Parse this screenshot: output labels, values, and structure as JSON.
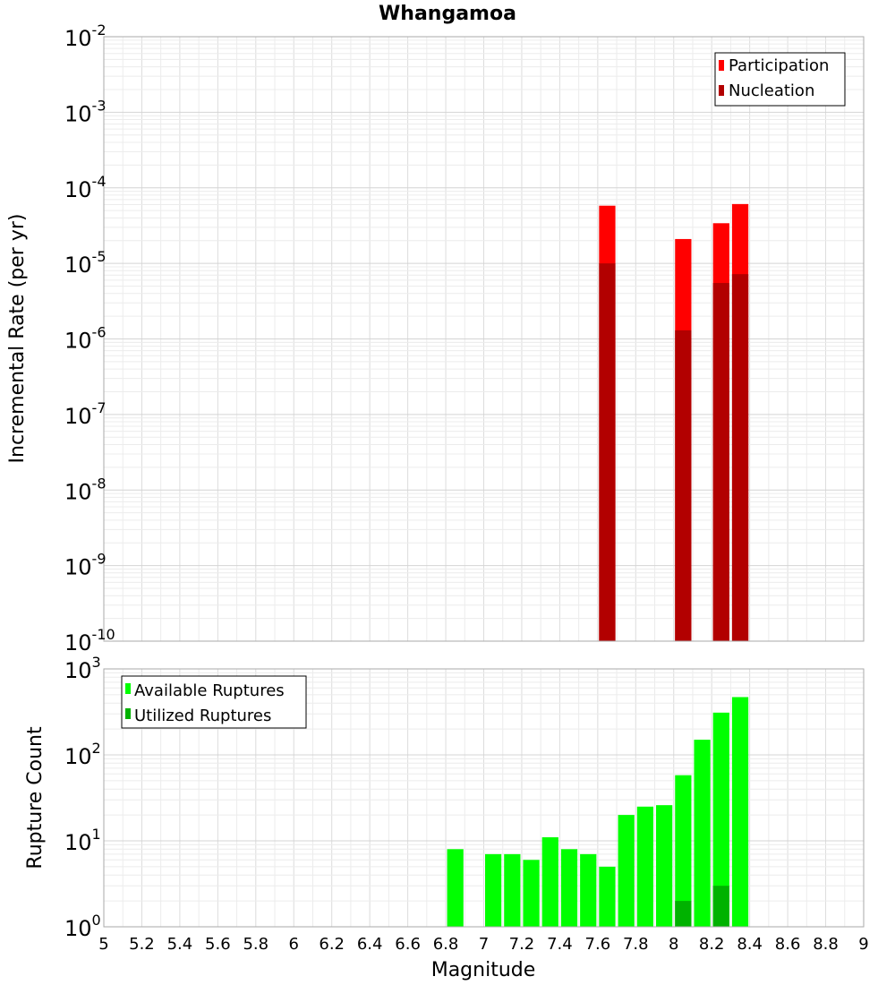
{
  "chart_data": [
    {
      "type": "bar",
      "title": "Whangamoa",
      "ylabel": "Incremental Rate (per yr)",
      "xlabel": "",
      "yscale": "log",
      "ylim_exp": [
        -10,
        -2
      ],
      "xlim": [
        5,
        9
      ],
      "bar_width": 0.1,
      "grid": true,
      "legend_position": "top-right",
      "series": [
        {
          "name": "Participation",
          "color": "#ff0000",
          "x": [
            7.65,
            8.05,
            8.25,
            8.35
          ],
          "values": [
            5.8e-05,
            2.1e-05,
            3.4e-05,
            6.1e-05
          ]
        },
        {
          "name": "Nucleation",
          "color": "#b20000",
          "x": [
            7.65,
            8.05,
            8.25,
            8.35
          ],
          "values": [
            1e-05,
            1.3e-06,
            5.5e-06,
            7.2e-06
          ]
        }
      ]
    },
    {
      "type": "bar",
      "title": "",
      "ylabel": "Rupture Count",
      "xlabel": "Magnitude",
      "yscale": "log",
      "ylim_exp": [
        0,
        3
      ],
      "xlim": [
        5,
        9
      ],
      "bar_width": 0.1,
      "grid": true,
      "legend_position": "top-left",
      "x_ticks": [
        "5",
        "5.2",
        "5.4",
        "5.6",
        "5.8",
        "6",
        "6.2",
        "6.4",
        "6.6",
        "6.8",
        "7",
        "7.2",
        "7.4",
        "7.6",
        "7.8",
        "8",
        "8.2",
        "8.4",
        "8.6",
        "8.8",
        "9"
      ],
      "series": [
        {
          "name": "Available Ruptures",
          "color": "#00ff00",
          "x": [
            6.85,
            7.05,
            7.15,
            7.25,
            7.35,
            7.45,
            7.55,
            7.65,
            7.75,
            7.85,
            7.95,
            8.05,
            8.15,
            8.25,
            8.35
          ],
          "values": [
            8,
            7,
            7,
            6,
            11,
            8,
            7,
            5,
            20,
            25,
            26,
            58,
            150,
            310,
            470
          ]
        },
        {
          "name": "Utilized Ruptures",
          "color": "#00b200",
          "x": [
            7.65,
            8.05,
            8.25,
            8.35
          ],
          "values": [
            1,
            2,
            3,
            1
          ]
        }
      ]
    }
  ]
}
